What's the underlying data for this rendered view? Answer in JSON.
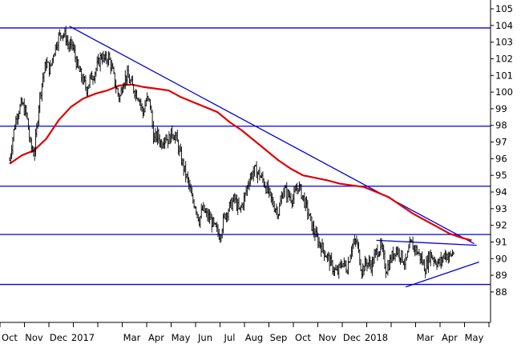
{
  "chart_data": {
    "type": "line",
    "title": "",
    "xlabel": "",
    "ylabel": "",
    "ylim": [
      87.3,
      105.6
    ],
    "grid": false,
    "colors": {
      "price": "#000000",
      "moving_average": "#e00000",
      "trendlines": "#0000dd",
      "axis": "#000000"
    },
    "x_tick_labels": [
      {
        "label": "Oct",
        "m": 0
      },
      {
        "label": "Nov",
        "m": 1
      },
      {
        "label": "Dec",
        "m": 2
      },
      {
        "label": "2017",
        "m": 3
      },
      {
        "label": "Mar",
        "m": 5
      },
      {
        "label": "Apr",
        "m": 6
      },
      {
        "label": "May",
        "m": 7
      },
      {
        "label": "Jun",
        "m": 8
      },
      {
        "label": "Jul",
        "m": 9
      },
      {
        "label": "Aug",
        "m": 10
      },
      {
        "label": "Sep",
        "m": 11
      },
      {
        "label": "Oct",
        "m": 12
      },
      {
        "label": "Nov",
        "m": 13
      },
      {
        "label": "Dec",
        "m": 14
      },
      {
        "label": "2018",
        "m": 15
      },
      {
        "label": "Mar",
        "m": 17
      },
      {
        "label": "Apr",
        "m": 18
      },
      {
        "label": "May",
        "m": 19
      }
    ],
    "y_ticks": [
      88,
      89,
      90,
      91,
      92,
      93,
      94,
      95,
      96,
      97,
      98,
      99,
      100,
      101,
      102,
      103,
      104,
      105
    ],
    "horizontal_lines": [
      103.85,
      97.95,
      94.35,
      91.45,
      88.45
    ],
    "trendlines": [
      {
        "from": [
          2.45,
          103.95
        ],
        "to": [
          19.0,
          90.9
        ]
      },
      {
        "from": [
          15.0,
          91.1
        ],
        "to": [
          19.1,
          90.8
        ]
      },
      {
        "from": [
          16.2,
          88.3
        ],
        "to": [
          19.2,
          89.8
        ]
      }
    ],
    "series": [
      {
        "kind": "price",
        "x": [
          0.0,
          0.15,
          0.3,
          0.5,
          0.7,
          0.85,
          1.0,
          1.1,
          1.2,
          1.35,
          1.5,
          1.65,
          1.8,
          2.0,
          2.15,
          2.3,
          2.45,
          2.55,
          2.65,
          2.8,
          3.0,
          3.15,
          3.3,
          3.45,
          3.6,
          3.75,
          3.9,
          4.05,
          4.2,
          4.35,
          4.5,
          4.65,
          4.8,
          5.0,
          5.15,
          5.3,
          5.45,
          5.6,
          5.75,
          5.9,
          6.05,
          6.2,
          6.35,
          6.5,
          6.65,
          6.8,
          7.0,
          7.15,
          7.3,
          7.45,
          7.6,
          7.75,
          7.9,
          8.05,
          8.2,
          8.4,
          8.6,
          8.8,
          9.0,
          9.2,
          9.4,
          9.6,
          9.8,
          10.0,
          10.2,
          10.4,
          10.6,
          10.8,
          11.0,
          11.2,
          11.4,
          11.6,
          11.8,
          12.0,
          12.2,
          12.4,
          12.6,
          12.8,
          13.0,
          13.2,
          13.4,
          13.6,
          13.8,
          14.0,
          14.2,
          14.4,
          14.6,
          14.8,
          15.0,
          15.2,
          15.4,
          15.6,
          15.8,
          16.0,
          16.2,
          16.4,
          16.6,
          16.8,
          17.0,
          17.2,
          17.4,
          17.6,
          17.8,
          18.0,
          18.2
        ],
        "values": [
          95.9,
          97.5,
          98.7,
          99.3,
          98.6,
          96.8,
          96.3,
          97.6,
          99.4,
          100.8,
          101.8,
          101.3,
          102.4,
          103.3,
          103.6,
          103.3,
          102.6,
          102.9,
          102.3,
          101.4,
          100.7,
          100.2,
          100.8,
          101.1,
          101.6,
          102.2,
          101.9,
          102.1,
          101.3,
          100.3,
          99.6,
          100.7,
          101.0,
          100.4,
          100.0,
          99.7,
          98.7,
          99.6,
          99.3,
          97.1,
          97.4,
          96.9,
          97.4,
          97.1,
          97.6,
          97.3,
          96.1,
          95.3,
          94.6,
          93.6,
          93.2,
          92.3,
          93.0,
          92.6,
          92.4,
          91.8,
          91.4,
          92.6,
          93.1,
          93.6,
          92.8,
          93.6,
          94.8,
          95.3,
          95.1,
          94.6,
          93.9,
          93.2,
          92.8,
          94.2,
          93.8,
          93.6,
          94.4,
          93.7,
          92.8,
          91.8,
          91.1,
          90.6,
          90.1,
          89.5,
          89.1,
          89.8,
          89.4,
          90.8,
          91.0,
          89.3,
          89.8,
          89.6,
          90.4,
          90.7,
          89.3,
          90.0,
          90.6,
          90.2,
          89.7,
          90.9,
          90.6,
          90.1,
          89.4,
          90.3,
          89.9,
          89.7,
          90.3,
          90.1,
          90.5
        ],
        "noise": 0.7
      },
      {
        "kind": "moving_average",
        "x": [
          0.0,
          0.5,
          1.0,
          1.5,
          2.0,
          2.5,
          3.0,
          3.5,
          4.0,
          4.5,
          5.0,
          5.5,
          6.0,
          6.5,
          7.0,
          7.5,
          8.0,
          8.5,
          9.0,
          9.5,
          10.0,
          10.5,
          11.0,
          11.5,
          12.0,
          12.5,
          13.0,
          13.5,
          14.0,
          14.5,
          15.0,
          15.5,
          16.0,
          16.5,
          17.0,
          17.5,
          18.0,
          18.5,
          18.9
        ],
        "values": [
          95.7,
          96.2,
          96.5,
          97.2,
          98.3,
          99.1,
          99.6,
          99.9,
          100.1,
          100.4,
          100.45,
          100.3,
          100.2,
          100.1,
          99.7,
          99.4,
          99.1,
          98.8,
          98.2,
          97.7,
          97.1,
          96.5,
          95.9,
          95.4,
          95.0,
          94.85,
          94.7,
          94.5,
          94.4,
          94.3,
          94.0,
          93.7,
          93.2,
          92.7,
          92.3,
          91.9,
          91.5,
          91.25,
          91.1
        ]
      }
    ]
  }
}
